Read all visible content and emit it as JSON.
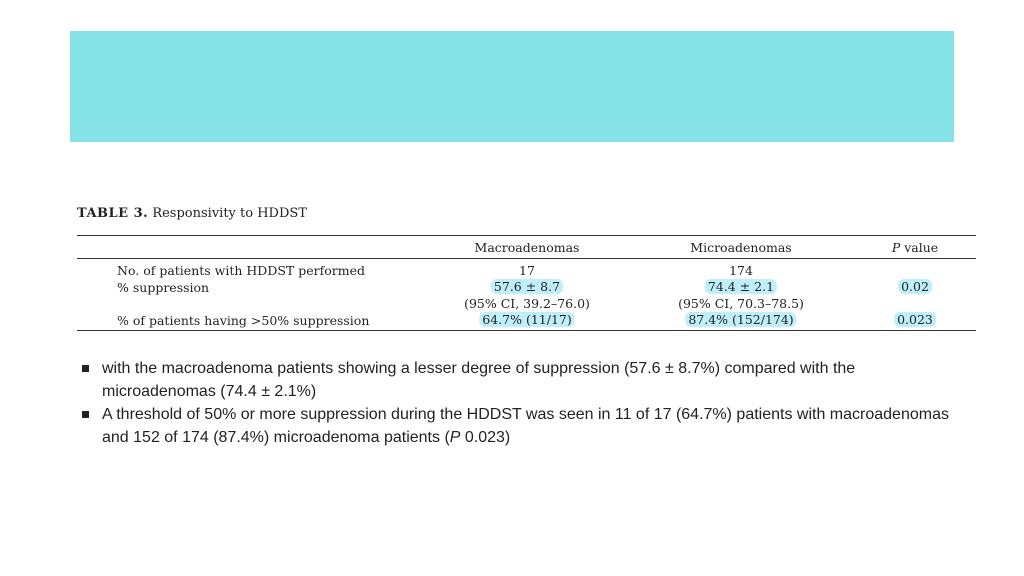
{
  "banner_color": "#85e3e8",
  "table": {
    "title_label": "TABLE 3.",
    "title_text": "Responsivity to HDDST",
    "headers": [
      "Macroadenomas",
      "Microadenomas",
      "P value"
    ],
    "rows": [
      {
        "label": "No. of patients with HDDST performed",
        "macro": "17",
        "micro": "174",
        "p": ""
      },
      {
        "label": "% suppression",
        "macro": "57.6 ± 8.7",
        "micro": "74.4 ± 2.1",
        "p": "0.02"
      },
      {
        "label": "",
        "macro": "(95% CI, 39.2–76.0)",
        "micro": "(95% CI, 70.3–78.5)",
        "p": ""
      },
      {
        "label": "% of patients having >50% suppression",
        "macro": "64.7% (11/17)",
        "micro": "87.4% (152/174)",
        "p": "0.023"
      }
    ]
  },
  "bullets": [
    "with the macroadenoma patients showing a lesser degree of suppression (57.6  ±  8.7%) compared with the microadenomas (74.4 ± 2.1%)",
    "A threshold of 50% or more suppression during the HDDST was seen in 11 of 17 (64.7%) patients with macroadenomas and 152 of 174 (87.4%) microadenoma patients (P  0.023)"
  ]
}
